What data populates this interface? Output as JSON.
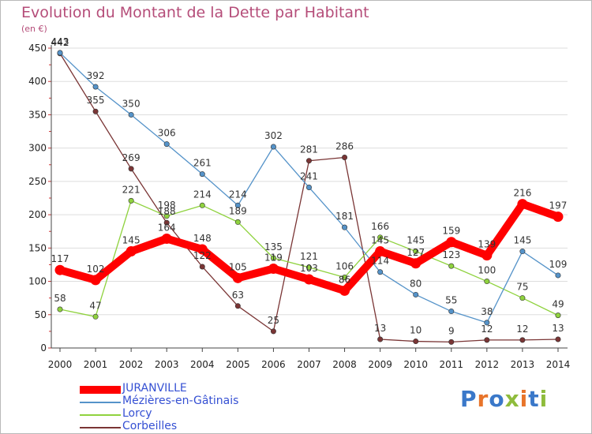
{
  "title": "Evolution du Montant de la Dette par Habitant",
  "unit": "(en €)",
  "brand": {
    "text": "Proxiti",
    "letter_colors": [
      "#3a78c9",
      "#e8742a",
      "#3a78c9",
      "#8fbc3c",
      "#e8742a",
      "#3a78c9",
      "#8fbc3c"
    ]
  },
  "chart_data": {
    "type": "line",
    "title": "Evolution du Montant de la Dette par Habitant",
    "ylabel": "(en €)",
    "xlabel": "",
    "x": [
      "2000",
      "2001",
      "2002",
      "2003",
      "2004",
      "2005",
      "2006",
      "2007",
      "2008",
      "2009",
      "2010",
      "2011",
      "2012",
      "2013",
      "2014"
    ],
    "ylim": [
      0,
      450
    ],
    "yticks": [
      "0",
      "50",
      "100",
      "150",
      "200",
      "250",
      "300",
      "350",
      "400",
      "450"
    ],
    "grid": "horizontal",
    "legend_position": "bottom-left",
    "series": [
      {
        "name": "JURANVILLE",
        "color": "#ff0000",
        "values": [
          117,
          102,
          145,
          164,
          148,
          105,
          119,
          103,
          86,
          145,
          127,
          159,
          139,
          216,
          197
        ],
        "labels": [
          "117",
          "102",
          "145",
          "164",
          "148",
          "105",
          "119",
          "103",
          "86",
          "145",
          "127",
          "159",
          "139",
          "216",
          "197"
        ]
      },
      {
        "name": "Mézières-en-Gâtinais",
        "color": "#5593c9",
        "values": [
          443,
          392,
          350,
          306,
          261,
          214,
          302,
          241,
          181,
          114,
          80,
          55,
          38,
          145,
          109
        ],
        "labels": [
          "443",
          "392",
          "350",
          "306",
          "261",
          "214",
          "302",
          "241",
          "181",
          "114",
          "80",
          "55",
          "38",
          "145",
          "109"
        ]
      },
      {
        "name": "Lorcy",
        "color": "#8fd23e",
        "values": [
          58,
          47,
          221,
          198,
          214,
          189,
          135,
          121,
          106,
          166,
          145,
          123,
          100,
          75,
          49
        ],
        "labels": [
          "58",
          "47",
          "221",
          "198",
          "214",
          "189",
          "135",
          "121",
          "106",
          "166",
          "145",
          "123",
          "100",
          "75",
          "49"
        ]
      },
      {
        "name": "Corbeilles",
        "color": "#7a3535",
        "values": [
          442,
          355,
          269,
          188,
          122,
          63,
          25,
          281,
          286,
          13,
          10,
          9,
          12,
          12,
          13
        ],
        "labels": [
          "442",
          "355",
          "269",
          "188",
          "122",
          "63",
          "25",
          "281",
          "286",
          "13",
          "10",
          "9",
          "12",
          "12",
          "13"
        ]
      }
    ]
  }
}
